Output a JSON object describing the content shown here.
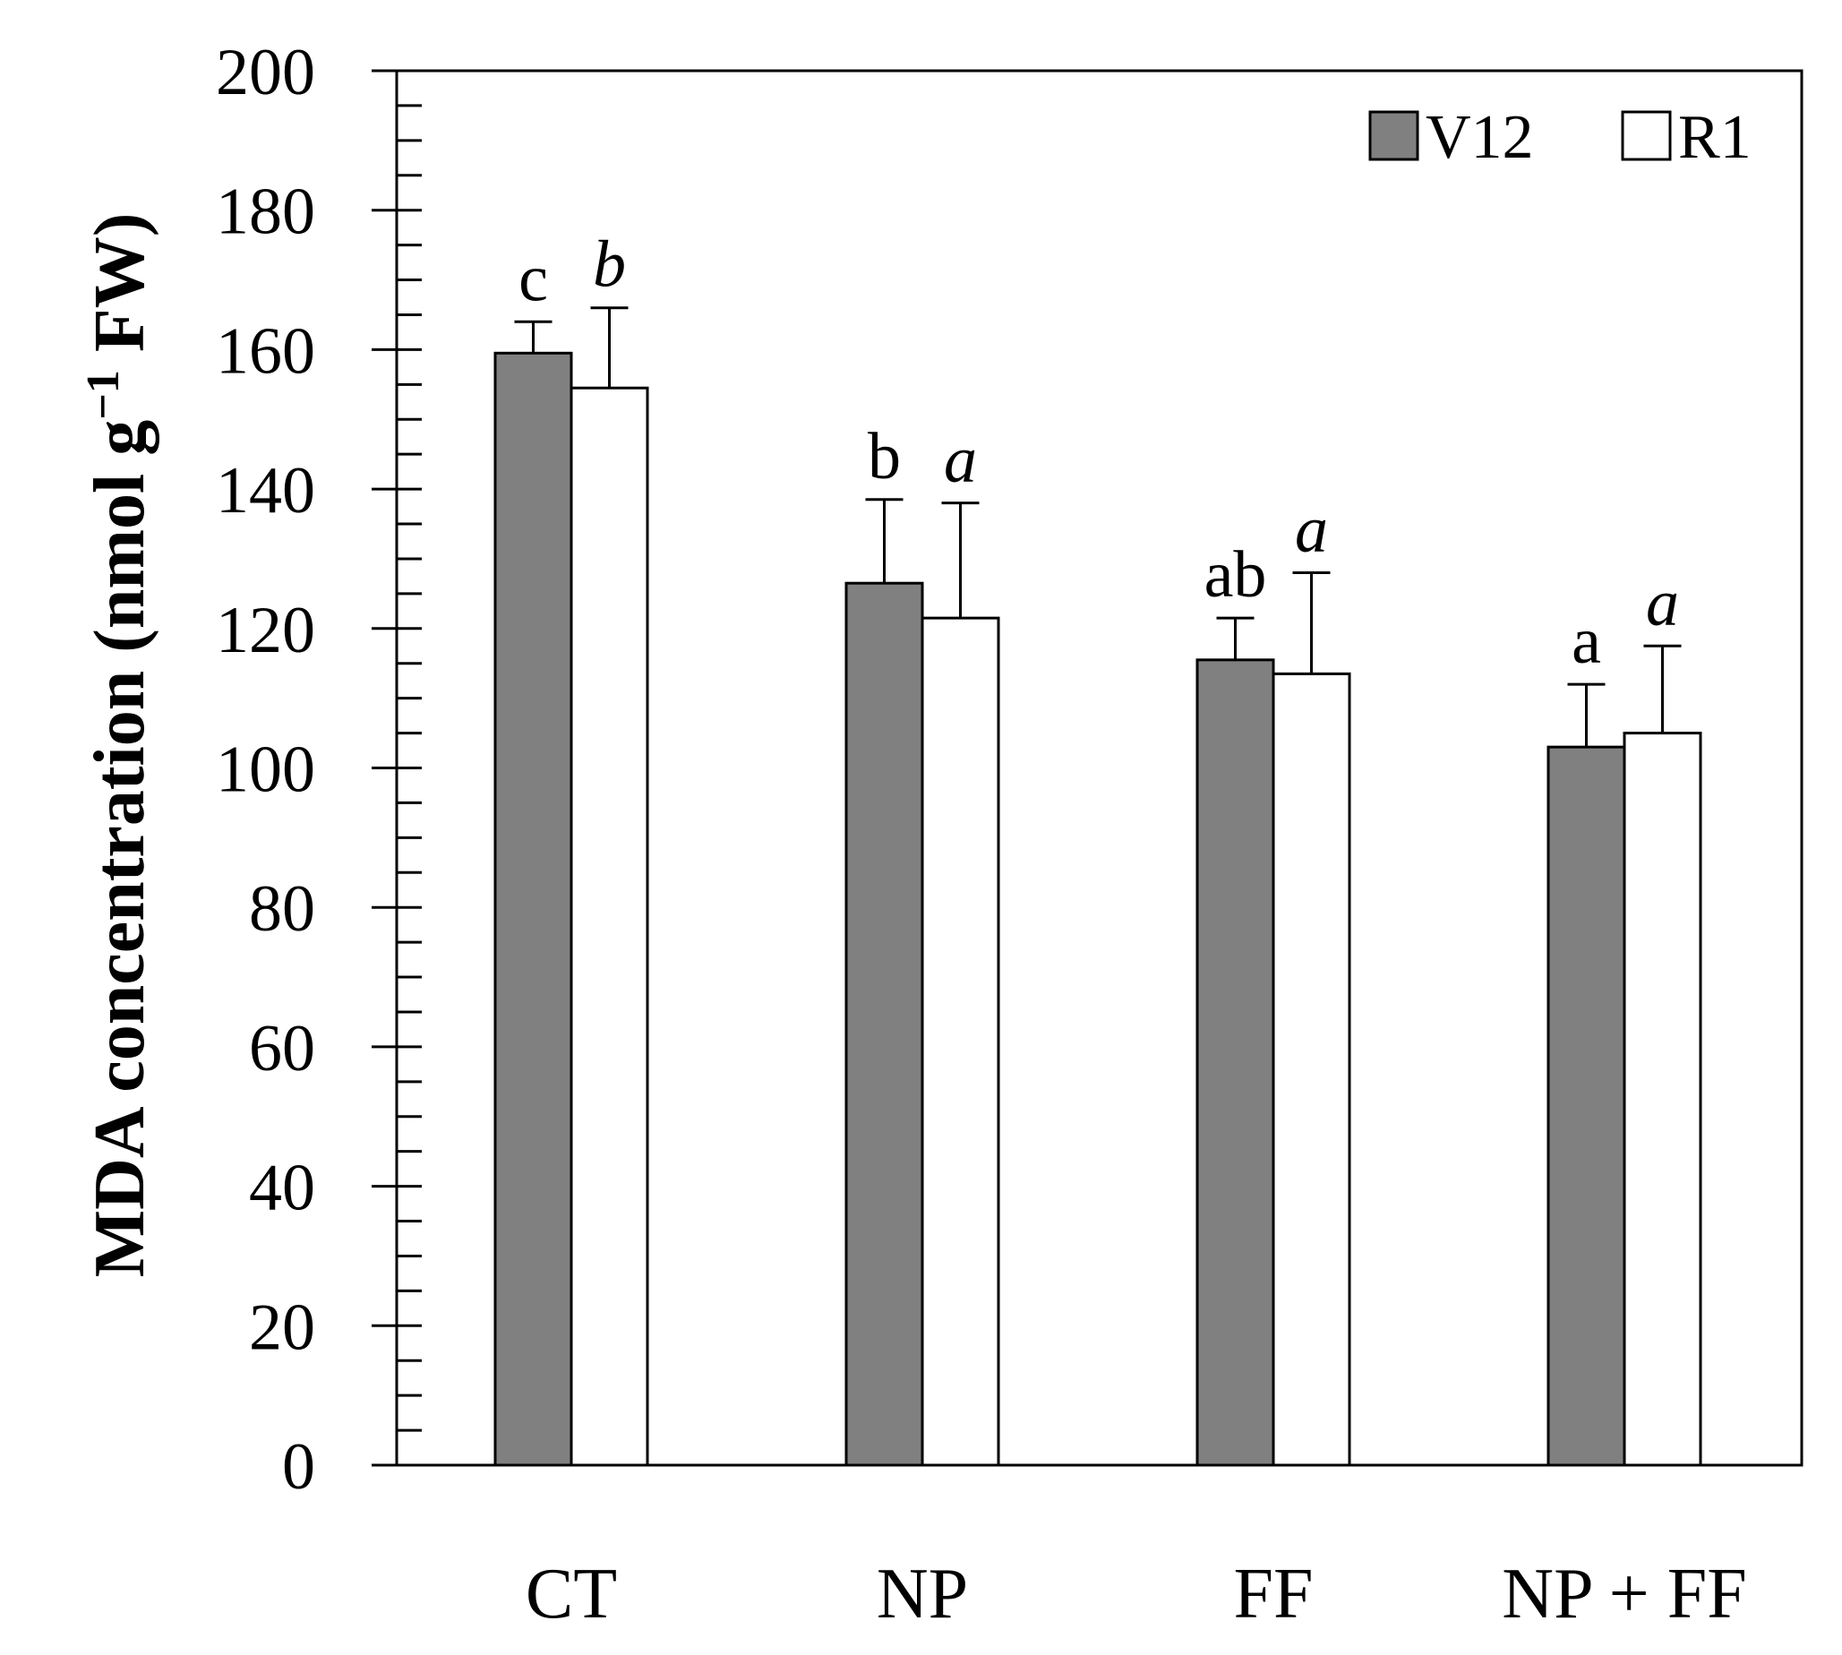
{
  "chart_data": {
    "type": "bar",
    "title": "",
    "xlabel": "",
    "ylabel": "MDA concentration (nmol g",
    "ylabel_superscript": "−1",
    "ylabel_suffix": " FW)",
    "ylim": [
      0,
      200
    ],
    "yticks": [
      0,
      20,
      40,
      60,
      80,
      100,
      120,
      140,
      160,
      180,
      200
    ],
    "minor_tick_step": 5,
    "legend_position": "top-right",
    "categories": [
      "CT",
      "NP",
      "FF",
      "NP + FF"
    ],
    "series": [
      {
        "name": "V12",
        "color": "#808080",
        "values": [
          159.5,
          126.5,
          115.5,
          103.0
        ],
        "errors": [
          4.5,
          12.0,
          6.0,
          9.0
        ],
        "letters": [
          "c",
          "b",
          "ab",
          "a"
        ],
        "letters_italic": false
      },
      {
        "name": "R1",
        "color": "#ffffff",
        "values": [
          154.5,
          121.5,
          113.5,
          105.0
        ],
        "errors": [
          11.5,
          16.5,
          14.5,
          12.5
        ],
        "letters": [
          "b",
          "a",
          "a",
          "a"
        ],
        "letters_italic": true
      }
    ]
  }
}
